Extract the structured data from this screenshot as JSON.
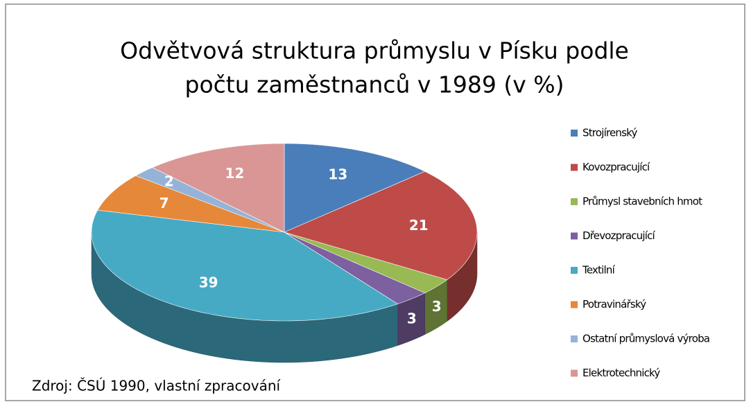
{
  "chart_data": {
    "type": "pie",
    "title": [
      "Odvětvová struktura průmyslu v Písku podle",
      "počtu zaměstnanců v 1989 (v %)"
    ],
    "categories": [
      "Strojírenský",
      "Kovozpracující",
      "Průmysl stavebních hmot",
      "Dřevozpracující",
      "Textilní",
      "Potravinářský",
      "Ostatní průmyslová výroba",
      "Elektrotechnický"
    ],
    "values": [
      13,
      21,
      3,
      3,
      39,
      7,
      2,
      12
    ],
    "colors": [
      "#4a7ebb",
      "#be4b48",
      "#98b954",
      "#7d60a0",
      "#46aac5",
      "#e6883a",
      "#95b3d7",
      "#d99694"
    ],
    "legend": "right",
    "source": "Zdroj: ČSÚ 1990, vlastní zpracování"
  }
}
